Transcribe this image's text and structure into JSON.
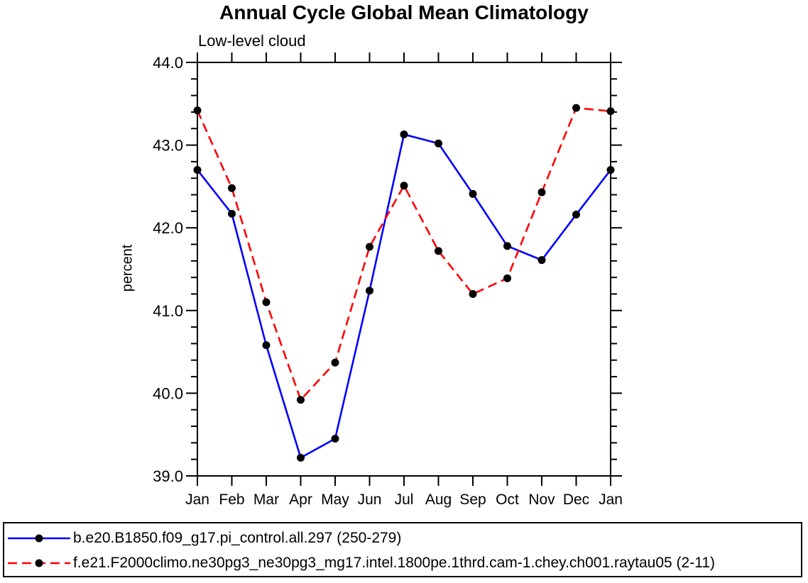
{
  "chart_data": {
    "type": "line",
    "title": "Annual Cycle Global Mean Climatology",
    "subtitle": "Low-level cloud",
    "categories": [
      "Jan",
      "Feb",
      "Mar",
      "Apr",
      "May",
      "Jun",
      "Jul",
      "Aug",
      "Sep",
      "Oct",
      "Nov",
      "Dec",
      "Jan"
    ],
    "y_axis": {
      "label": "percent",
      "range": [
        39.0,
        44.0
      ],
      "ticks": [
        39.0,
        40.0,
        41.0,
        42.0,
        43.0,
        44.0
      ],
      "tick_labels": [
        "39.0",
        "40.0",
        "41.0",
        "42.0",
        "43.0",
        "44.0"
      ],
      "minor_step": 0.2
    },
    "grid": false,
    "legend_position": "bottom",
    "series": [
      {
        "name": "b.e20.B1850.f09_g17.pi_control.all.297 (250-279)",
        "color": "#0000ff",
        "line_style": "solid",
        "marker": "circle",
        "marker_color": "#000000",
        "values": [
          42.7,
          42.17,
          40.58,
          39.22,
          39.45,
          41.24,
          43.13,
          43.02,
          42.41,
          41.78,
          41.61,
          42.16,
          42.7
        ]
      },
      {
        "name": "f.e21.F2000climo.ne30pg3_ne30pg3_mg17.intel.1800pe.1thrd.cam-1.chey.ch001.raytau05 (2-11)",
        "color": "#ff0000",
        "line_style": "dashed",
        "marker": "circle",
        "marker_color": "#000000",
        "values": [
          43.42,
          42.48,
          41.1,
          39.92,
          40.37,
          41.77,
          42.51,
          41.72,
          41.2,
          41.39,
          42.43,
          43.45,
          43.41
        ]
      }
    ]
  }
}
